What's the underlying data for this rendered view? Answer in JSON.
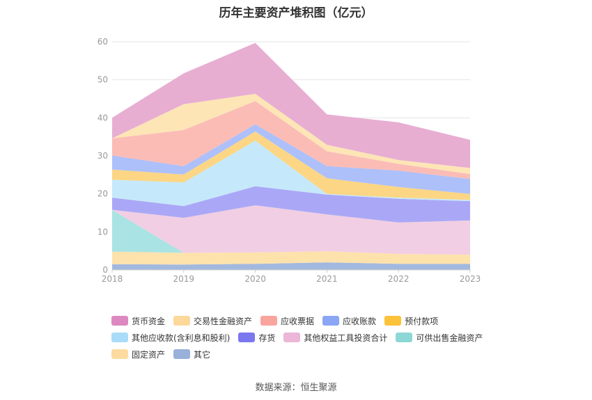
{
  "chart_data": {
    "type": "area",
    "title": "历年主要资产堆积图（亿元）",
    "x": [
      "2018",
      "2019",
      "2020",
      "2021",
      "2022",
      "2023"
    ],
    "ylim": [
      0,
      60
    ],
    "yticks": [
      0,
      10,
      20,
      30,
      40,
      50,
      60
    ],
    "stacked": true,
    "grid": true,
    "legend_position": "bottom",
    "series": [
      {
        "name": "其它",
        "color": "#9db5dd",
        "values": [
          1.5,
          1.4,
          1.6,
          2.0,
          1.6,
          1.6
        ]
      },
      {
        "name": "固定资产",
        "color": "#fde0a8",
        "values": [
          3.3,
          3.1,
          3.0,
          2.9,
          2.6,
          2.4
        ]
      },
      {
        "name": "可供出售金融资产",
        "color": "#a5e2e1",
        "values": [
          11.0,
          0.0,
          0.0,
          0.0,
          0.0,
          0.0
        ]
      },
      {
        "name": "其他权益工具投资合计",
        "color": "#f0cbe2",
        "values": [
          0.0,
          9.2,
          12.4,
          9.7,
          8.3,
          9.0
        ]
      },
      {
        "name": "存货",
        "color": "#a5a3f5",
        "values": [
          3.2,
          3.1,
          5.0,
          5.2,
          6.2,
          5.1
        ]
      },
      {
        "name": "其他应收款(含利息和股利)",
        "color": "#c3e7fb",
        "values": [
          4.7,
          6.2,
          12.0,
          0.2,
          0.3,
          0.3
        ]
      },
      {
        "name": "预付款项",
        "color": "#fcd47d",
        "values": [
          2.7,
          2.1,
          2.4,
          4.1,
          2.8,
          1.6
        ]
      },
      {
        "name": "应收账款",
        "color": "#a9bdfa",
        "values": [
          3.7,
          2.2,
          1.9,
          3.2,
          4.3,
          3.9
        ]
      },
      {
        "name": "应收票据",
        "color": "#fbb8b2",
        "values": [
          4.5,
          9.5,
          6.1,
          3.9,
          1.8,
          1.3
        ]
      },
      {
        "name": "交易性金融资产",
        "color": "#fde4b2",
        "values": [
          0.0,
          6.8,
          1.9,
          1.7,
          1.0,
          1.6
        ]
      },
      {
        "name": "货币资金",
        "color": "#e6aad0",
        "values": [
          5.4,
          8.1,
          13.4,
          8.0,
          9.9,
          7.4
        ]
      }
    ]
  },
  "legend": {
    "rows": [
      [
        {
          "label": "货币资金",
          "color": "#dd88c0"
        },
        {
          "label": "交易性金融资产",
          "color": "#fcd89a"
        },
        {
          "label": "应收票据",
          "color": "#f9a49d"
        },
        {
          "label": "应收账款",
          "color": "#8aa6f5"
        },
        {
          "label": "预付款项",
          "color": "#fcc23a"
        }
      ],
      [
        {
          "label": "其他应收款(含利息和股利)",
          "color": "#a9dcf8"
        },
        {
          "label": "存货",
          "color": "#7b77ef"
        },
        {
          "label": "其他权益工具投资合计",
          "color": "#ebb6d8"
        },
        {
          "label": "可供出售金融资产",
          "color": "#8dd8d6"
        }
      ],
      [
        {
          "label": "固定资产",
          "color": "#fddba0"
        },
        {
          "label": "其它",
          "color": "#98b0da"
        }
      ]
    ]
  },
  "source": "数据来源：恒生聚源"
}
